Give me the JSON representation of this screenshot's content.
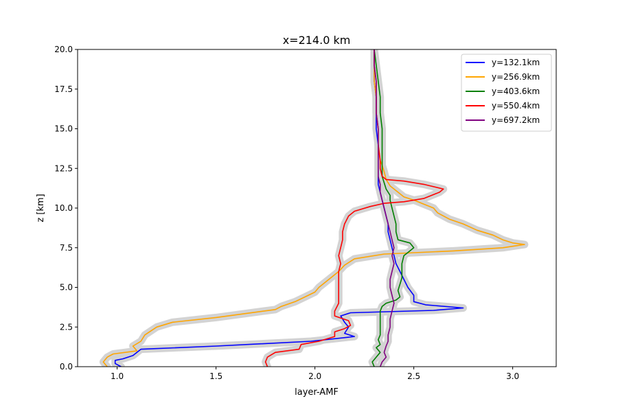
{
  "colors": {
    "blue": "#0000ff",
    "orange": "#ffa500",
    "green": "#008000",
    "red": "#ff0000",
    "purple": "#800080",
    "band": "#d3d3d3"
  },
  "chart_data": {
    "type": "line",
    "title": "x=214.0 km",
    "xlabel": "layer-AMF",
    "ylabel": "z [km]",
    "xlim": [
      0.8,
      3.22
    ],
    "ylim": [
      0,
      20
    ],
    "xticks": [
      "1.0",
      "1.5",
      "2.0",
      "2.5",
      "3.0"
    ],
    "yticks": [
      "0.0",
      "2.5",
      "5.0",
      "7.5",
      "10.0",
      "12.5",
      "15.0",
      "17.5",
      "20.0"
    ],
    "grid": false,
    "legend_position": "top-right",
    "series": [
      {
        "name": "y=132.1km",
        "color": "#0000ff",
        "points": [
          [
            1.02,
            0
          ],
          [
            0.99,
            0.2
          ],
          [
            0.99,
            0.4
          ],
          [
            1.03,
            0.5
          ],
          [
            1.08,
            0.7
          ],
          [
            1.12,
            1.1
          ],
          [
            1.5,
            1.3
          ],
          [
            1.98,
            1.6
          ],
          [
            2.2,
            1.9
          ],
          [
            2.15,
            2.1
          ],
          [
            2.17,
            2.5
          ],
          [
            2.15,
            2.8
          ],
          [
            2.13,
            3.2
          ],
          [
            2.18,
            3.4
          ],
          [
            2.6,
            3.55
          ],
          [
            2.75,
            3.7
          ],
          [
            2.56,
            3.9
          ],
          [
            2.5,
            4.1
          ],
          [
            2.5,
            4.5
          ],
          [
            2.47,
            5
          ],
          [
            2.45,
            5.5
          ],
          [
            2.43,
            6
          ],
          [
            2.41,
            6.5
          ],
          [
            2.4,
            7
          ],
          [
            2.39,
            7.5
          ],
          [
            2.38,
            8
          ],
          [
            2.37,
            8.5
          ],
          [
            2.37,
            9
          ],
          [
            2.36,
            9.5
          ],
          [
            2.35,
            10
          ],
          [
            2.34,
            10.5
          ],
          [
            2.33,
            11
          ],
          [
            2.32,
            11.5
          ],
          [
            2.32,
            12
          ],
          [
            2.32,
            12.5
          ],
          [
            2.32,
            13
          ],
          [
            2.32,
            14
          ],
          [
            2.31,
            15
          ],
          [
            2.31,
            16
          ],
          [
            2.31,
            17
          ],
          [
            2.3,
            18
          ],
          [
            2.3,
            19
          ],
          [
            2.3,
            20
          ]
        ]
      },
      {
        "name": "y=256.9km",
        "color": "#ffa500",
        "points": [
          [
            0.95,
            0
          ],
          [
            0.93,
            0.3
          ],
          [
            0.95,
            0.6
          ],
          [
            0.98,
            0.8
          ],
          [
            1.1,
            1
          ],
          [
            1.08,
            1.3
          ],
          [
            1.12,
            1.6
          ],
          [
            1.14,
            2
          ],
          [
            1.2,
            2.5
          ],
          [
            1.28,
            2.8
          ],
          [
            1.5,
            3.1
          ],
          [
            1.8,
            3.6
          ],
          [
            1.83,
            3.8
          ],
          [
            1.9,
            4.1
          ],
          [
            1.95,
            4.4
          ],
          [
            2.0,
            4.7
          ],
          [
            2.02,
            5
          ],
          [
            2.05,
            5.3
          ],
          [
            2.08,
            5.6
          ],
          [
            2.12,
            6
          ],
          [
            2.15,
            6.4
          ],
          [
            2.2,
            6.8
          ],
          [
            2.35,
            7.1
          ],
          [
            2.7,
            7.3
          ],
          [
            2.95,
            7.5
          ],
          [
            3.06,
            7.7
          ],
          [
            3.0,
            7.8
          ],
          [
            2.95,
            8
          ],
          [
            2.9,
            8.3
          ],
          [
            2.82,
            8.6
          ],
          [
            2.75,
            9
          ],
          [
            2.68,
            9.3
          ],
          [
            2.62,
            9.7
          ],
          [
            2.6,
            10
          ],
          [
            2.56,
            10.2
          ],
          [
            2.5,
            10.5
          ],
          [
            2.45,
            10.7
          ],
          [
            2.42,
            11
          ],
          [
            2.38,
            11.4
          ],
          [
            2.36,
            11.8
          ],
          [
            2.35,
            12.3
          ],
          [
            2.34,
            12.7
          ],
          [
            2.33,
            13
          ],
          [
            2.32,
            14
          ],
          [
            2.32,
            15
          ],
          [
            2.31,
            16
          ],
          [
            2.31,
            17
          ],
          [
            2.3,
            18
          ],
          [
            2.3,
            19
          ],
          [
            2.3,
            20
          ]
        ]
      },
      {
        "name": "y=403.6km",
        "color": "#008000",
        "points": [
          [
            2.3,
            0
          ],
          [
            2.29,
            0.3
          ],
          [
            2.31,
            0.6
          ],
          [
            2.33,
            0.9
          ],
          [
            2.31,
            1.2
          ],
          [
            2.33,
            1.4
          ],
          [
            2.32,
            1.7
          ],
          [
            2.33,
            2
          ],
          [
            2.33,
            2.5
          ],
          [
            2.33,
            3
          ],
          [
            2.33,
            3.5
          ],
          [
            2.34,
            3.8
          ],
          [
            2.36,
            4
          ],
          [
            2.41,
            4.2
          ],
          [
            2.43,
            4.4
          ],
          [
            2.42,
            4.8
          ],
          [
            2.43,
            5.2
          ],
          [
            2.44,
            5.6
          ],
          [
            2.44,
            6
          ],
          [
            2.44,
            6.5
          ],
          [
            2.45,
            7
          ],
          [
            2.47,
            7.2
          ],
          [
            2.5,
            7.5
          ],
          [
            2.48,
            7.8
          ],
          [
            2.42,
            8
          ],
          [
            2.41,
            8.5
          ],
          [
            2.41,
            9
          ],
          [
            2.4,
            9.5
          ],
          [
            2.39,
            10
          ],
          [
            2.38,
            10.5
          ],
          [
            2.38,
            10.8
          ],
          [
            2.36,
            11.2
          ],
          [
            2.35,
            11.6
          ],
          [
            2.34,
            12
          ],
          [
            2.34,
            12.5
          ],
          [
            2.34,
            13
          ],
          [
            2.34,
            14
          ],
          [
            2.34,
            15
          ],
          [
            2.33,
            16
          ],
          [
            2.33,
            17
          ],
          [
            2.32,
            18
          ],
          [
            2.31,
            19
          ],
          [
            2.3,
            20
          ]
        ]
      },
      {
        "name": "y=550.4km",
        "color": "#ff0000",
        "points": [
          [
            1.76,
            0
          ],
          [
            1.75,
            0.3
          ],
          [
            1.76,
            0.6
          ],
          [
            1.8,
            0.9
          ],
          [
            1.92,
            1.1
          ],
          [
            1.93,
            1.4
          ],
          [
            2.02,
            1.6
          ],
          [
            2.1,
            1.9
          ],
          [
            2.1,
            2.2
          ],
          [
            2.15,
            2.4
          ],
          [
            2.18,
            2.6
          ],
          [
            2.17,
            2.9
          ],
          [
            2.1,
            3.2
          ],
          [
            2.1,
            3.5
          ],
          [
            2.12,
            4
          ],
          [
            2.12,
            4.5
          ],
          [
            2.12,
            5
          ],
          [
            2.12,
            5.5
          ],
          [
            2.12,
            6
          ],
          [
            2.13,
            6.5
          ],
          [
            2.12,
            7
          ],
          [
            2.13,
            7.5
          ],
          [
            2.14,
            8
          ],
          [
            2.14,
            8.5
          ],
          [
            2.15,
            9
          ],
          [
            2.17,
            9.5
          ],
          [
            2.2,
            9.8
          ],
          [
            2.28,
            10.1
          ],
          [
            2.35,
            10.3
          ],
          [
            2.45,
            10.4
          ],
          [
            2.55,
            10.6
          ],
          [
            2.63,
            11
          ],
          [
            2.65,
            11.2
          ],
          [
            2.55,
            11.5
          ],
          [
            2.45,
            11.7
          ],
          [
            2.36,
            11.8
          ],
          [
            2.34,
            12
          ],
          [
            2.33,
            12.5
          ],
          [
            2.33,
            13
          ],
          [
            2.32,
            14
          ],
          [
            2.32,
            15
          ],
          [
            2.31,
            16
          ],
          [
            2.31,
            17
          ],
          [
            2.31,
            18
          ],
          [
            2.3,
            19
          ],
          [
            2.3,
            20
          ]
        ]
      },
      {
        "name": "y=697.2km",
        "color": "#800080",
        "points": [
          [
            2.33,
            0
          ],
          [
            2.34,
            0.3
          ],
          [
            2.36,
            0.6
          ],
          [
            2.35,
            0.9
          ],
          [
            2.36,
            1.3
          ],
          [
            2.37,
            1.6
          ],
          [
            2.37,
            2
          ],
          [
            2.38,
            2.5
          ],
          [
            2.38,
            3
          ],
          [
            2.39,
            3.5
          ],
          [
            2.4,
            4
          ],
          [
            2.39,
            4.5
          ],
          [
            2.38,
            5
          ],
          [
            2.38,
            5.5
          ],
          [
            2.39,
            6
          ],
          [
            2.4,
            6.5
          ],
          [
            2.39,
            7
          ],
          [
            2.4,
            7.5
          ],
          [
            2.39,
            8
          ],
          [
            2.38,
            8.5
          ],
          [
            2.37,
            9
          ],
          [
            2.36,
            9.5
          ],
          [
            2.35,
            10
          ],
          [
            2.34,
            10.5
          ],
          [
            2.33,
            11
          ],
          [
            2.33,
            11.5
          ],
          [
            2.32,
            12
          ],
          [
            2.32,
            13
          ],
          [
            2.32,
            14
          ],
          [
            2.32,
            15
          ],
          [
            2.31,
            16
          ],
          [
            2.31,
            17
          ],
          [
            2.31,
            18
          ],
          [
            2.3,
            19
          ],
          [
            2.3,
            20
          ]
        ]
      }
    ]
  }
}
